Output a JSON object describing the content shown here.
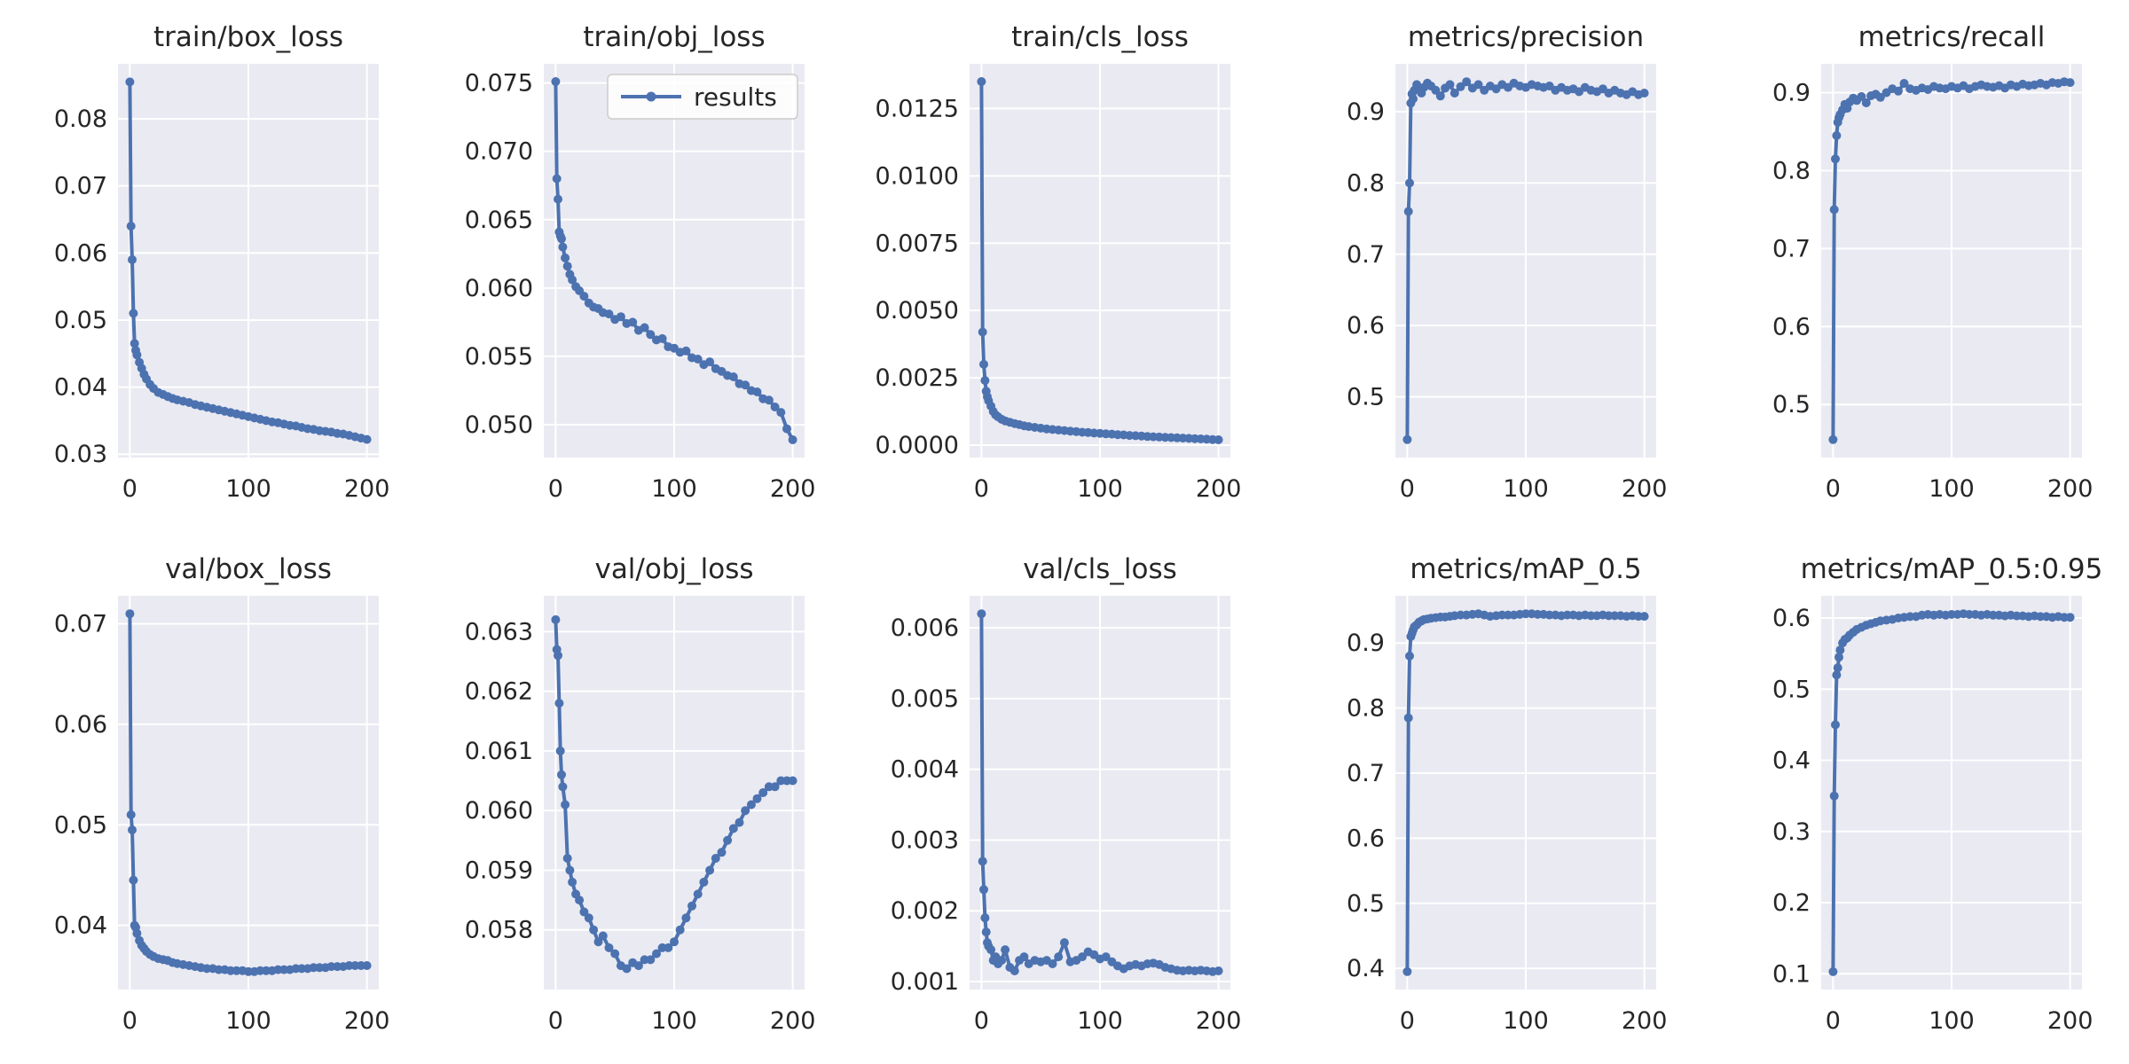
{
  "styles": {
    "figure_bg": "#ffffff",
    "axes_bg": "#eaeaf2",
    "grid_color": "#ffffff",
    "line_color": "#4c72b0",
    "text_color": "#262626",
    "legend_face": "#ffffff",
    "legend_edge": "#cccccc"
  },
  "legend": {
    "label": "results"
  },
  "epochs": [
    0,
    1,
    2,
    3,
    4,
    5,
    6,
    8,
    10,
    12,
    14,
    17,
    20,
    24,
    28,
    32,
    36,
    40,
    45,
    50,
    55,
    60,
    65,
    70,
    75,
    80,
    85,
    90,
    95,
    100,
    105,
    110,
    115,
    120,
    125,
    130,
    135,
    140,
    145,
    150,
    155,
    160,
    165,
    170,
    175,
    180,
    185,
    190,
    195,
    200
  ],
  "chart_data": [
    {
      "type": "line",
      "title": "train/box_loss",
      "legend": null,
      "x_ticks": [
        0,
        100,
        200
      ],
      "xlim": [
        -10,
        210
      ],
      "y_ticks": [
        0.03,
        0.04,
        0.05,
        0.06,
        0.07,
        0.08
      ],
      "tick_decimals": 2,
      "ylim": [
        0.0295,
        0.0882
      ],
      "values": [
        0.0855,
        0.064,
        0.059,
        0.051,
        0.0465,
        0.0455,
        0.0448,
        0.0437,
        0.0428,
        0.0419,
        0.0412,
        0.0404,
        0.0398,
        0.0392,
        0.0389,
        0.0386,
        0.0383,
        0.0381,
        0.0379,
        0.0377,
        0.0374,
        0.0372,
        0.037,
        0.0368,
        0.0366,
        0.0364,
        0.0362,
        0.036,
        0.0358,
        0.0356,
        0.0354,
        0.0352,
        0.035,
        0.0348,
        0.0347,
        0.0345,
        0.0343,
        0.0342,
        0.034,
        0.0338,
        0.0337,
        0.0335,
        0.0334,
        0.0333,
        0.0331,
        0.033,
        0.0328,
        0.0326,
        0.0324,
        0.0322
      ]
    },
    {
      "type": "line",
      "title": "train/obj_loss",
      "legend": "results",
      "x_ticks": [
        0,
        100,
        200
      ],
      "xlim": [
        -10,
        210
      ],
      "y_ticks": [
        0.05,
        0.055,
        0.06,
        0.065,
        0.07,
        0.075
      ],
      "tick_decimals": 3,
      "ylim": [
        0.0476,
        0.0764
      ],
      "values": [
        0.0751,
        0.068,
        0.0665,
        0.0641,
        0.0638,
        0.0636,
        0.063,
        0.0622,
        0.0616,
        0.061,
        0.0606,
        0.0601,
        0.0598,
        0.0594,
        0.0589,
        0.0586,
        0.0585,
        0.0582,
        0.0581,
        0.0577,
        0.0579,
        0.0574,
        0.0575,
        0.0569,
        0.0571,
        0.0566,
        0.0562,
        0.0563,
        0.0557,
        0.0556,
        0.0553,
        0.0554,
        0.0549,
        0.0548,
        0.0544,
        0.0546,
        0.0541,
        0.0539,
        0.0536,
        0.0535,
        0.053,
        0.0529,
        0.0525,
        0.0524,
        0.0519,
        0.0518,
        0.0513,
        0.0509,
        0.0497,
        0.0489
      ]
    },
    {
      "type": "line",
      "title": "train/cls_loss",
      "legend": null,
      "x_ticks": [
        0,
        100,
        200
      ],
      "xlim": [
        -10,
        210
      ],
      "y_ticks": [
        0.0,
        0.0025,
        0.005,
        0.0075,
        0.01,
        0.0125
      ],
      "tick_decimals": 4,
      "ylim": [
        -0.00046,
        0.01416
      ],
      "values": [
        0.0135,
        0.0042,
        0.003,
        0.0024,
        0.002,
        0.0018,
        0.00165,
        0.00145,
        0.00125,
        0.00112,
        0.00105,
        0.00096,
        0.0009,
        0.00085,
        0.0008,
        0.00076,
        0.00072,
        0.00069,
        0.00066,
        0.00063,
        0.0006,
        0.00058,
        0.00056,
        0.00054,
        0.00052,
        0.0005,
        0.00048,
        0.00047,
        0.00045,
        0.00044,
        0.00042,
        0.00041,
        0.00039,
        0.00038,
        0.00036,
        0.00035,
        0.00034,
        0.00032,
        0.00031,
        0.0003,
        0.00029,
        0.00028,
        0.00027,
        0.00026,
        0.00025,
        0.00024,
        0.00023,
        0.00022,
        0.00021,
        0.0002
      ]
    },
    {
      "type": "line",
      "title": "metrics/precision",
      "legend": null,
      "x_ticks": [
        0,
        100,
        200
      ],
      "xlim": [
        -10,
        210
      ],
      "y_ticks": [
        0.5,
        0.6,
        0.7,
        0.8,
        0.9
      ],
      "tick_decimals": 1,
      "ylim": [
        0.4149,
        0.9671
      ],
      "values": [
        0.44,
        0.76,
        0.8,
        0.912,
        0.925,
        0.918,
        0.93,
        0.938,
        0.932,
        0.926,
        0.934,
        0.94,
        0.936,
        0.93,
        0.922,
        0.933,
        0.938,
        0.926,
        0.935,
        0.942,
        0.933,
        0.938,
        0.93,
        0.936,
        0.932,
        0.938,
        0.934,
        0.94,
        0.936,
        0.934,
        0.938,
        0.936,
        0.934,
        0.936,
        0.93,
        0.934,
        0.93,
        0.932,
        0.928,
        0.934,
        0.93,
        0.928,
        0.932,
        0.926,
        0.93,
        0.926,
        0.924,
        0.928,
        0.924,
        0.926
      ]
    },
    {
      "type": "line",
      "title": "metrics/recall",
      "legend": null,
      "x_ticks": [
        0,
        100,
        200
      ],
      "xlim": [
        -10,
        210
      ],
      "y_ticks": [
        0.5,
        0.6,
        0.7,
        0.8,
        0.9
      ],
      "tick_decimals": 1,
      "ylim": [
        0.432,
        0.937
      ],
      "values": [
        0.455,
        0.75,
        0.815,
        0.845,
        0.862,
        0.868,
        0.872,
        0.878,
        0.885,
        0.88,
        0.888,
        0.893,
        0.89,
        0.895,
        0.887,
        0.896,
        0.898,
        0.894,
        0.9,
        0.905,
        0.902,
        0.912,
        0.905,
        0.903,
        0.906,
        0.904,
        0.908,
        0.906,
        0.905,
        0.908,
        0.906,
        0.909,
        0.905,
        0.908,
        0.91,
        0.908,
        0.907,
        0.909,
        0.906,
        0.91,
        0.908,
        0.911,
        0.909,
        0.91,
        0.912,
        0.91,
        0.913,
        0.912,
        0.914,
        0.913
      ]
    },
    {
      "type": "line",
      "title": "val/box_loss",
      "legend": null,
      "x_ticks": [
        0,
        100,
        200
      ],
      "xlim": [
        -10,
        210
      ],
      "y_ticks": [
        0.04,
        0.05,
        0.06,
        0.07
      ],
      "tick_decimals": 2,
      "ylim": [
        0.03362,
        0.07278
      ],
      "values": [
        0.071,
        0.051,
        0.0495,
        0.0445,
        0.04,
        0.0398,
        0.0392,
        0.0385,
        0.038,
        0.0377,
        0.0374,
        0.0371,
        0.0369,
        0.0367,
        0.0366,
        0.0365,
        0.0363,
        0.0362,
        0.0361,
        0.036,
        0.0359,
        0.0358,
        0.0357,
        0.0357,
        0.0356,
        0.0356,
        0.0355,
        0.0355,
        0.0355,
        0.0354,
        0.0354,
        0.0355,
        0.0355,
        0.0355,
        0.0356,
        0.0356,
        0.0356,
        0.0357,
        0.0357,
        0.0357,
        0.0358,
        0.0358,
        0.0358,
        0.0359,
        0.0359,
        0.0359,
        0.036,
        0.036,
        0.036,
        0.036
      ]
    },
    {
      "type": "line",
      "title": "val/obj_loss",
      "legend": null,
      "x_ticks": [
        0,
        100,
        200
      ],
      "xlim": [
        -10,
        210
      ],
      "y_ticks": [
        0.058,
        0.059,
        0.06,
        0.061,
        0.062,
        0.063
      ],
      "tick_decimals": 3,
      "ylim": [
        0.057,
        0.0636
      ],
      "values": [
        0.0632,
        0.0627,
        0.0626,
        0.0618,
        0.061,
        0.0606,
        0.0604,
        0.0601,
        0.0592,
        0.059,
        0.0588,
        0.0586,
        0.0585,
        0.0583,
        0.0582,
        0.058,
        0.0578,
        0.0579,
        0.0577,
        0.0576,
        0.0574,
        0.05735,
        0.05745,
        0.0574,
        0.0575,
        0.0575,
        0.0576,
        0.0577,
        0.0577,
        0.0578,
        0.058,
        0.0582,
        0.0584,
        0.0586,
        0.0588,
        0.059,
        0.0592,
        0.0593,
        0.0595,
        0.0597,
        0.0598,
        0.06,
        0.0601,
        0.0602,
        0.0603,
        0.0604,
        0.0604,
        0.0605,
        0.0605,
        0.0605
      ]
    },
    {
      "type": "line",
      "title": "val/cls_loss",
      "legend": null,
      "x_ticks": [
        0,
        100,
        200
      ],
      "xlim": [
        -10,
        210
      ],
      "y_ticks": [
        0.001,
        0.002,
        0.003,
        0.004,
        0.005,
        0.006
      ],
      "tick_decimals": 3,
      "ylim": [
        0.000887,
        0.006453
      ],
      "values": [
        0.0062,
        0.0027,
        0.0023,
        0.0019,
        0.0017,
        0.00155,
        0.0015,
        0.00145,
        0.0013,
        0.00135,
        0.00125,
        0.0013,
        0.00145,
        0.0012,
        0.00115,
        0.0013,
        0.00135,
        0.00125,
        0.0013,
        0.00128,
        0.0013,
        0.00125,
        0.00135,
        0.00155,
        0.00128,
        0.0013,
        0.00135,
        0.00142,
        0.00138,
        0.00132,
        0.00135,
        0.00128,
        0.00122,
        0.00118,
        0.00122,
        0.00124,
        0.00122,
        0.00125,
        0.00126,
        0.00124,
        0.0012,
        0.00118,
        0.00116,
        0.00115,
        0.00116,
        0.00115,
        0.00116,
        0.00115,
        0.00114,
        0.00115
      ]
    },
    {
      "type": "line",
      "title": "metrics/mAP_0.5",
      "legend": null,
      "x_ticks": [
        0,
        100,
        200
      ],
      "xlim": [
        -10,
        210
      ],
      "y_ticks": [
        0.4,
        0.5,
        0.6,
        0.7,
        0.8,
        0.9
      ],
      "tick_decimals": 1,
      "ylim": [
        0.3675,
        0.9725
      ],
      "values": [
        0.395,
        0.785,
        0.88,
        0.91,
        0.915,
        0.92,
        0.925,
        0.928,
        0.932,
        0.934,
        0.936,
        0.937,
        0.938,
        0.939,
        0.94,
        0.94,
        0.941,
        0.942,
        0.943,
        0.943,
        0.944,
        0.945,
        0.943,
        0.941,
        0.942,
        0.943,
        0.943,
        0.943,
        0.944,
        0.945,
        0.945,
        0.944,
        0.944,
        0.943,
        0.943,
        0.942,
        0.943,
        0.943,
        0.942,
        0.943,
        0.942,
        0.942,
        0.943,
        0.942,
        0.942,
        0.942,
        0.941,
        0.942,
        0.941,
        0.941
      ]
    },
    {
      "type": "line",
      "title": "metrics/mAP_0.5:0.95",
      "legend": null,
      "x_ticks": [
        0,
        100,
        200
      ],
      "xlim": [
        -10,
        210
      ],
      "y_ticks": [
        0.1,
        0.2,
        0.3,
        0.4,
        0.5,
        0.6
      ],
      "tick_decimals": 1,
      "ylim": [
        0.0779,
        0.6312
      ],
      "values": [
        0.103,
        0.35,
        0.45,
        0.52,
        0.53,
        0.545,
        0.555,
        0.565,
        0.57,
        0.572,
        0.576,
        0.58,
        0.584,
        0.587,
        0.59,
        0.592,
        0.594,
        0.596,
        0.597,
        0.598,
        0.6,
        0.601,
        0.602,
        0.602,
        0.604,
        0.605,
        0.604,
        0.605,
        0.604,
        0.605,
        0.605,
        0.606,
        0.605,
        0.605,
        0.604,
        0.605,
        0.604,
        0.604,
        0.603,
        0.604,
        0.603,
        0.603,
        0.602,
        0.603,
        0.602,
        0.602,
        0.601,
        0.602,
        0.601,
        0.601
      ]
    }
  ]
}
